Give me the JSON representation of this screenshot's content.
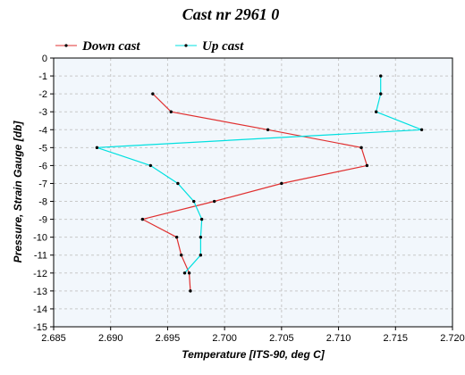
{
  "chart_data": {
    "type": "line",
    "title": "Cast nr 2961 0",
    "xlabel": "Temperature [ITS-90, deg C]",
    "ylabel": "Pressure, Strain Gauge [db]",
    "xlim": [
      2.685,
      2.72
    ],
    "ylim": [
      -15,
      0
    ],
    "xticks": [
      "2.685",
      "2.690",
      "2.695",
      "2.700",
      "2.705",
      "2.710",
      "2.715",
      "2.720"
    ],
    "yticks": [
      "0",
      "-1",
      "-2",
      "-3",
      "-4",
      "-5",
      "-6",
      "-7",
      "-8",
      "-9",
      "-10",
      "-11",
      "-12",
      "-13",
      "-14",
      "-15"
    ],
    "grid": true,
    "legend_position": "top",
    "series": [
      {
        "name": "Down cast",
        "color": "#e03030",
        "x": [
          2.6937,
          2.6953,
          2.7038,
          2.712,
          2.7125,
          2.705,
          2.6991,
          2.6928,
          2.6958,
          2.6962,
          2.6969,
          2.697
        ],
        "y": [
          -2,
          -3,
          -4,
          -5,
          -6,
          -7,
          -8,
          -9,
          -10,
          -11,
          -12,
          -13
        ]
      },
      {
        "name": "Up cast",
        "color": "#00e0e0",
        "x": [
          2.7137,
          2.7137,
          2.7133,
          2.7173,
          2.6888,
          2.6935,
          2.6959,
          2.6973,
          2.698,
          2.6979,
          2.6979,
          2.6965
        ],
        "y": [
          -1,
          -2,
          -3,
          -4,
          -5,
          -6,
          -7,
          -8,
          -9,
          -10,
          -11,
          -12
        ]
      }
    ]
  }
}
